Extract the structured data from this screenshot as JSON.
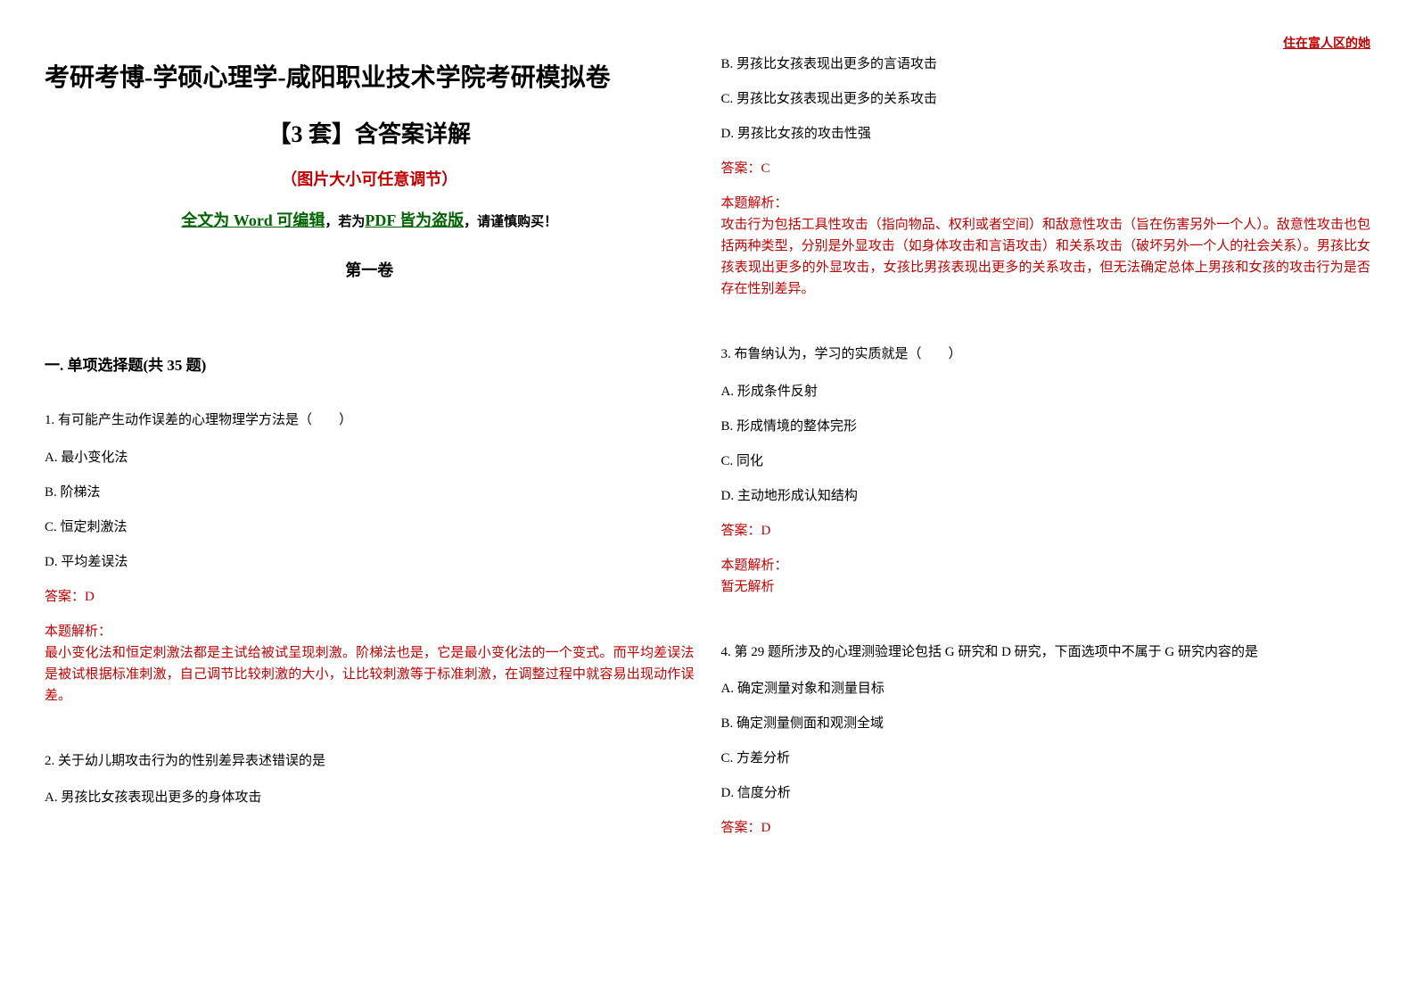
{
  "header_right": "住在富人区的她",
  "title_main": "考研考博-学硕心理学-咸阳职业技术学院考研模拟卷",
  "title_sub": "【3 套】含答案详解",
  "title_note": "（图片大小可任意调节）",
  "word_prefix": "全文为 Word 可编辑",
  "word_mid": "，若为",
  "word_pdf": "PDF 皆为盗版",
  "word_suffix": "，请谨慎购买！",
  "volume": "第一卷",
  "section1": "一. 单项选择题(共 35 题)",
  "q1": {
    "stem": "1. 有可能产生动作误差的心理物理学方法是（　　）",
    "a": "A. 最小变化法",
    "b": "B. 阶梯法",
    "c": "C. 恒定刺激法",
    "d": "D. 平均差误法",
    "answer": "答案：D",
    "analysis_label": "本题解析：",
    "analysis": "最小变化法和恒定刺激法都是主试给被试呈现刺激。阶梯法也是，它是最小变化法的一个变式。而平均差误法是被试根据标准刺激，自己调节比较刺激的大小，让比较刺激等于标准刺激，在调整过程中就容易出现动作误差。"
  },
  "q2": {
    "stem": "2. 关于幼儿期攻击行为的性别差异表述错误的是",
    "a": "A. 男孩比女孩表现出更多的身体攻击",
    "b": "B. 男孩比女孩表现出更多的言语攻击",
    "c": "C. 男孩比女孩表现出更多的关系攻击",
    "d": "D. 男孩比女孩的攻击性强",
    "answer": "答案：C",
    "analysis_label": "本题解析：",
    "analysis": "攻击行为包括工具性攻击（指向物品、权利或者空间）和敌意性攻击（旨在伤害另外一个人）。敌意性攻击也包括两种类型，分别是外显攻击（如身体攻击和言语攻击）和关系攻击（破坏另外一个人的社会关系）。男孩比女孩表现出更多的外显攻击，女孩比男孩表现出更多的关系攻击，但无法确定总体上男孩和女孩的攻击行为是否存在性别差异。"
  },
  "q3": {
    "stem": "3. 布鲁纳认为，学习的实质就是（　　）",
    "a": "A. 形成条件反射",
    "b": "B. 形成情境的整体完形",
    "c": "C. 同化",
    "d": "D. 主动地形成认知结构",
    "answer": "答案：D",
    "analysis_label": "本题解析：",
    "analysis": "暂无解析"
  },
  "q4": {
    "stem": "4. 第 29 题所涉及的心理测验理论包括 G 研究和 D 研究，下面选项中不属于 G 研究内容的是",
    "a": "A. 确定测量对象和测量目标",
    "b": "B. 确定测量侧面和观测全域",
    "c": "C. 方差分析",
    "d": "D. 信度分析",
    "answer": "答案：D"
  },
  "colors": {
    "red": "#c00000",
    "green": "#006400",
    "black": "#000000",
    "bg": "#ffffff"
  },
  "fonts": {
    "title_main_size": 28,
    "title_sub_size": 26,
    "note_size": 18,
    "body_size": 15,
    "section_size": 17
  }
}
